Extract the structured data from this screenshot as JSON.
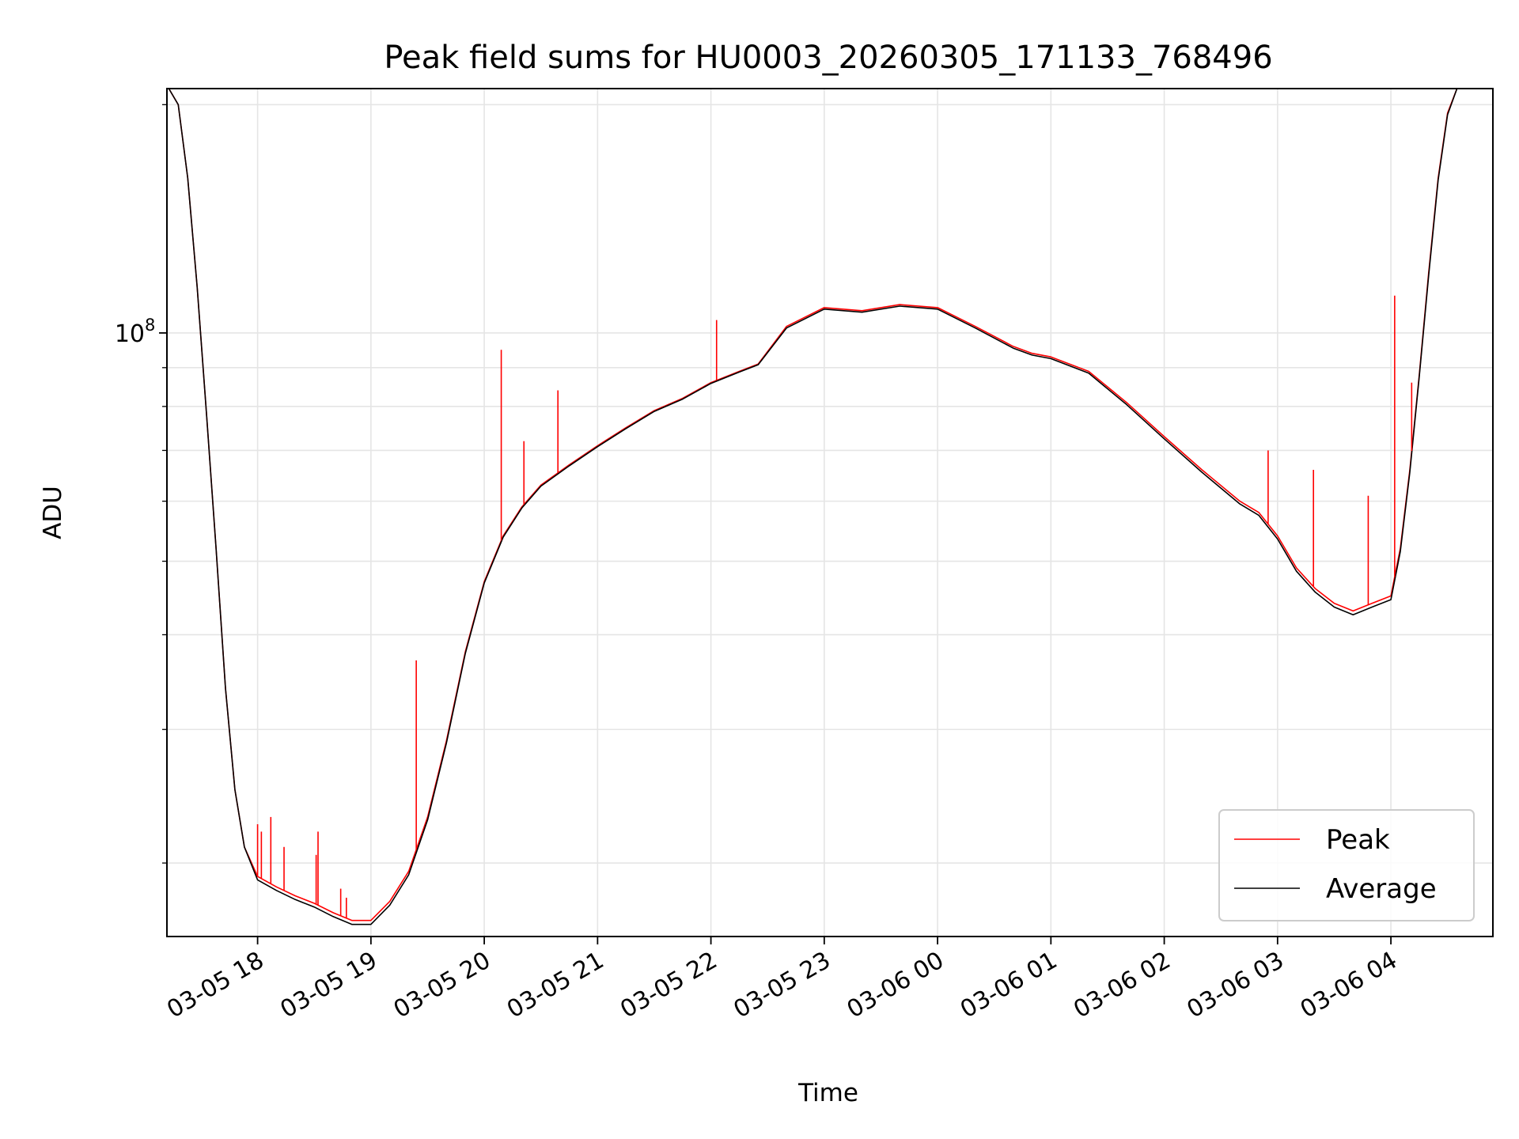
{
  "chart_data": {
    "type": "line",
    "title": "Peak field sums for HU0003_20260305_171133_768496",
    "xlabel": "Time",
    "ylabel": "ADU",
    "yscale": "log",
    "ylim": [
      16000000,
      210000000
    ],
    "xlim_hours": [
      17.2,
      4.9
    ],
    "grid": true,
    "legend_position": "lower-right",
    "x_ticks": [
      "03-05 18",
      "03-05 19",
      "03-05 20",
      "03-05 21",
      "03-05 22",
      "03-05 23",
      "03-06 00",
      "03-06 01",
      "03-06 02",
      "03-06 03",
      "03-06 04"
    ],
    "y_tick_label": "10",
    "y_tick_exponent": "8",
    "series": [
      {
        "name": "Peak",
        "color": "#ff0000",
        "x": [
          "17:13",
          "17:18",
          "17:23",
          "17:28",
          "17:33",
          "17:38",
          "17:43",
          "17:48",
          "17:53",
          "18:00",
          "18:10",
          "18:20",
          "18:30",
          "18:40",
          "18:50",
          "19:00",
          "19:10",
          "19:20",
          "19:30",
          "19:40",
          "19:50",
          "20:00",
          "20:10",
          "20:20",
          "20:30",
          "20:45",
          "21:00",
          "21:15",
          "21:30",
          "21:45",
          "22:00",
          "22:15",
          "22:25",
          "22:40",
          "23:00",
          "23:20",
          "23:40",
          "00:00",
          "00:20",
          "00:40",
          "00:50",
          "01:00",
          "01:20",
          "01:40",
          "02:00",
          "02:20",
          "02:40",
          "02:50",
          "03:00",
          "03:10",
          "03:20",
          "03:30",
          "03:40",
          "03:50",
          "04:00",
          "04:05",
          "04:10",
          "04:15",
          "04:20",
          "04:25",
          "04:30",
          "04:35",
          "04:40",
          "04:45"
        ],
        "values": [
          210000000,
          200000000,
          160000000,
          115000000,
          78000000,
          52000000,
          34000000,
          25000000,
          21000000,
          19200000,
          18600000,
          18100000,
          17700000,
          17200000,
          16800000,
          16800000,
          17800000,
          19500000,
          23000000,
          29000000,
          38000000,
          47000000,
          54000000,
          59000000,
          63000000,
          67000000,
          71000000,
          75000000,
          79000000,
          82000000,
          86000000,
          89000000,
          91000000,
          102000000,
          108000000,
          107000000,
          109000000,
          108000000,
          102000000,
          96000000,
          94000000,
          93000000,
          89000000,
          81000000,
          73000000,
          66000000,
          60000000,
          58000000,
          54000000,
          49000000,
          46000000,
          44000000,
          43000000,
          44000000,
          45000000,
          52000000,
          66000000,
          88000000,
          120000000,
          160000000,
          195000000,
          210000000,
          210000000,
          210000000
        ]
      },
      {
        "name": "Average",
        "color": "#000000",
        "x": [
          "17:13",
          "17:18",
          "17:23",
          "17:28",
          "17:33",
          "17:38",
          "17:43",
          "17:48",
          "17:53",
          "18:00",
          "18:10",
          "18:20",
          "18:30",
          "18:40",
          "18:50",
          "19:00",
          "19:10",
          "19:20",
          "19:30",
          "19:40",
          "19:50",
          "20:00",
          "20:10",
          "20:20",
          "20:30",
          "20:45",
          "21:00",
          "21:15",
          "21:30",
          "21:45",
          "22:00",
          "22:15",
          "22:25",
          "22:40",
          "23:00",
          "23:20",
          "23:40",
          "00:00",
          "00:20",
          "00:40",
          "00:50",
          "01:00",
          "01:20",
          "01:40",
          "02:00",
          "02:20",
          "02:40",
          "02:50",
          "03:00",
          "03:10",
          "03:20",
          "03:30",
          "03:40",
          "03:50",
          "04:00",
          "04:05",
          "04:10",
          "04:15",
          "04:20",
          "04:25",
          "04:30",
          "04:35",
          "04:40",
          "04:45"
        ],
        "values": [
          210000000,
          200000000,
          160000000,
          115000000,
          78000000,
          52000000,
          34000000,
          25000000,
          21000000,
          19000000,
          18400000,
          17900000,
          17500000,
          17000000,
          16600000,
          16600000,
          17600000,
          19300000,
          22800000,
          28800000,
          37800000,
          46800000,
          53800000,
          58800000,
          62800000,
          66800000,
          70800000,
          74800000,
          78800000,
          81800000,
          85800000,
          88800000,
          90800000,
          101500000,
          107500000,
          106500000,
          108500000,
          107500000,
          101500000,
          95500000,
          93500000,
          92500000,
          88500000,
          80500000,
          72500000,
          65500000,
          59500000,
          57500000,
          53500000,
          48500000,
          45500000,
          43500000,
          42500000,
          43500000,
          44500000,
          51500000,
          65500000,
          87500000,
          119000000,
          159000000,
          194000000,
          210000000,
          210000000,
          210000000
        ]
      }
    ],
    "spikes": [
      {
        "series": "Peak",
        "x": "18:00",
        "value": 22500000
      },
      {
        "series": "Peak",
        "x": "18:02",
        "value": 22000000
      },
      {
        "series": "Peak",
        "x": "18:07",
        "value": 23000000
      },
      {
        "series": "Peak",
        "x": "18:14",
        "value": 21000000
      },
      {
        "series": "Peak",
        "x": "18:31",
        "value": 20500000
      },
      {
        "series": "Peak",
        "x": "18:32",
        "value": 22000000
      },
      {
        "series": "Peak",
        "x": "18:44",
        "value": 18500000
      },
      {
        "series": "Peak",
        "x": "18:47",
        "value": 18000000
      },
      {
        "series": "Peak",
        "x": "19:24",
        "value": 37000000
      },
      {
        "series": "Peak",
        "x": "20:09",
        "value": 95000000
      },
      {
        "series": "Peak",
        "x": "20:21",
        "value": 72000000
      },
      {
        "series": "Peak",
        "x": "20:39",
        "value": 84000000
      },
      {
        "series": "Peak",
        "x": "22:03",
        "value": 104000000
      },
      {
        "series": "Peak",
        "x": "02:55",
        "value": 70000000
      },
      {
        "series": "Peak",
        "x": "03:19",
        "value": 66000000
      },
      {
        "series": "Peak",
        "x": "03:48",
        "value": 61000000
      },
      {
        "series": "Peak",
        "x": "04:02",
        "value": 112000000
      },
      {
        "series": "Peak",
        "x": "04:11",
        "value": 86000000
      }
    ]
  }
}
